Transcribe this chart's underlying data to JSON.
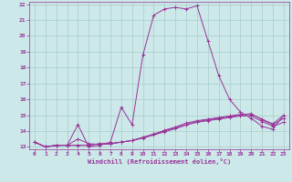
{
  "bg_color": "#cce8e8",
  "line_color": "#993399",
  "grid_color": "#aacccc",
  "xlabel": "Windchill (Refroidissement éolien,°C)",
  "xlabel_color": "#993399",
  "tick_color": "#993399",
  "spine_color": "#993399",
  "xlim": [
    -0.5,
    23.5
  ],
  "ylim": [
    12.85,
    22.15
  ],
  "yticks": [
    13,
    14,
    15,
    16,
    17,
    18,
    19,
    20,
    21,
    22
  ],
  "xticks": [
    0,
    1,
    2,
    3,
    4,
    5,
    6,
    7,
    8,
    9,
    10,
    11,
    12,
    13,
    14,
    15,
    16,
    17,
    18,
    19,
    20,
    21,
    22,
    23
  ],
  "lines": [
    [
      13.3,
      13.0,
      13.1,
      13.1,
      14.4,
      13.0,
      13.1,
      13.3,
      15.5,
      14.4,
      18.8,
      21.3,
      21.7,
      21.8,
      21.7,
      21.9,
      19.7,
      17.5,
      16.0,
      15.2,
      14.8,
      14.3,
      14.1,
      15.0
    ],
    [
      13.3,
      13.0,
      13.1,
      13.1,
      13.5,
      13.2,
      13.15,
      13.2,
      13.3,
      13.4,
      13.6,
      13.8,
      14.05,
      14.25,
      14.5,
      14.65,
      14.75,
      14.85,
      14.95,
      15.05,
      15.05,
      14.75,
      14.45,
      15.0
    ],
    [
      13.3,
      13.0,
      13.1,
      13.1,
      13.1,
      13.1,
      13.2,
      13.2,
      13.3,
      13.4,
      13.6,
      13.8,
      14.0,
      14.2,
      14.4,
      14.6,
      14.7,
      14.8,
      14.9,
      15.0,
      15.1,
      14.7,
      14.4,
      14.8
    ],
    [
      13.3,
      13.0,
      13.1,
      13.1,
      13.1,
      13.1,
      13.2,
      13.2,
      13.3,
      13.4,
      13.55,
      13.75,
      13.95,
      14.15,
      14.38,
      14.55,
      14.65,
      14.75,
      14.85,
      14.95,
      14.95,
      14.6,
      14.3,
      14.55
    ]
  ]
}
